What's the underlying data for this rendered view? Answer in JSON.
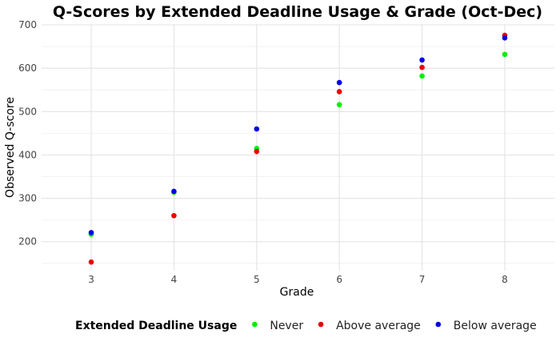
{
  "chart_data": {
    "type": "scatter",
    "title": "Q-Scores by Extended Deadline Usage & Grade (Oct-Dec)",
    "xlabel": "Grade",
    "ylabel": "Observed Q-score",
    "x_ticks": [
      3,
      4,
      5,
      6,
      7,
      8
    ],
    "y_ticks": [
      200,
      300,
      400,
      500,
      600,
      700
    ],
    "xlim": [
      2.4,
      8.6
    ],
    "ylim": [
      133,
      702
    ],
    "grid": true,
    "legend": {
      "title": "Extended Deadline Usage",
      "position": "bottom"
    },
    "series": [
      {
        "name": "Never",
        "color": "#00ee00",
        "x": [
          3,
          4,
          5,
          6,
          7,
          8
        ],
        "y": [
          217,
          314,
          415,
          516,
          582,
          632
        ]
      },
      {
        "name": "Above average",
        "color": "#ee0000",
        "x": [
          3,
          4,
          5,
          6,
          7,
          8
        ],
        "y": [
          153,
          260,
          408,
          546,
          602,
          676
        ]
      },
      {
        "name": "Below average",
        "color": "#0000ee",
        "x": [
          3,
          4,
          5,
          6,
          7,
          8
        ],
        "y": [
          221,
          316,
          460,
          567,
          619,
          670
        ]
      }
    ]
  }
}
